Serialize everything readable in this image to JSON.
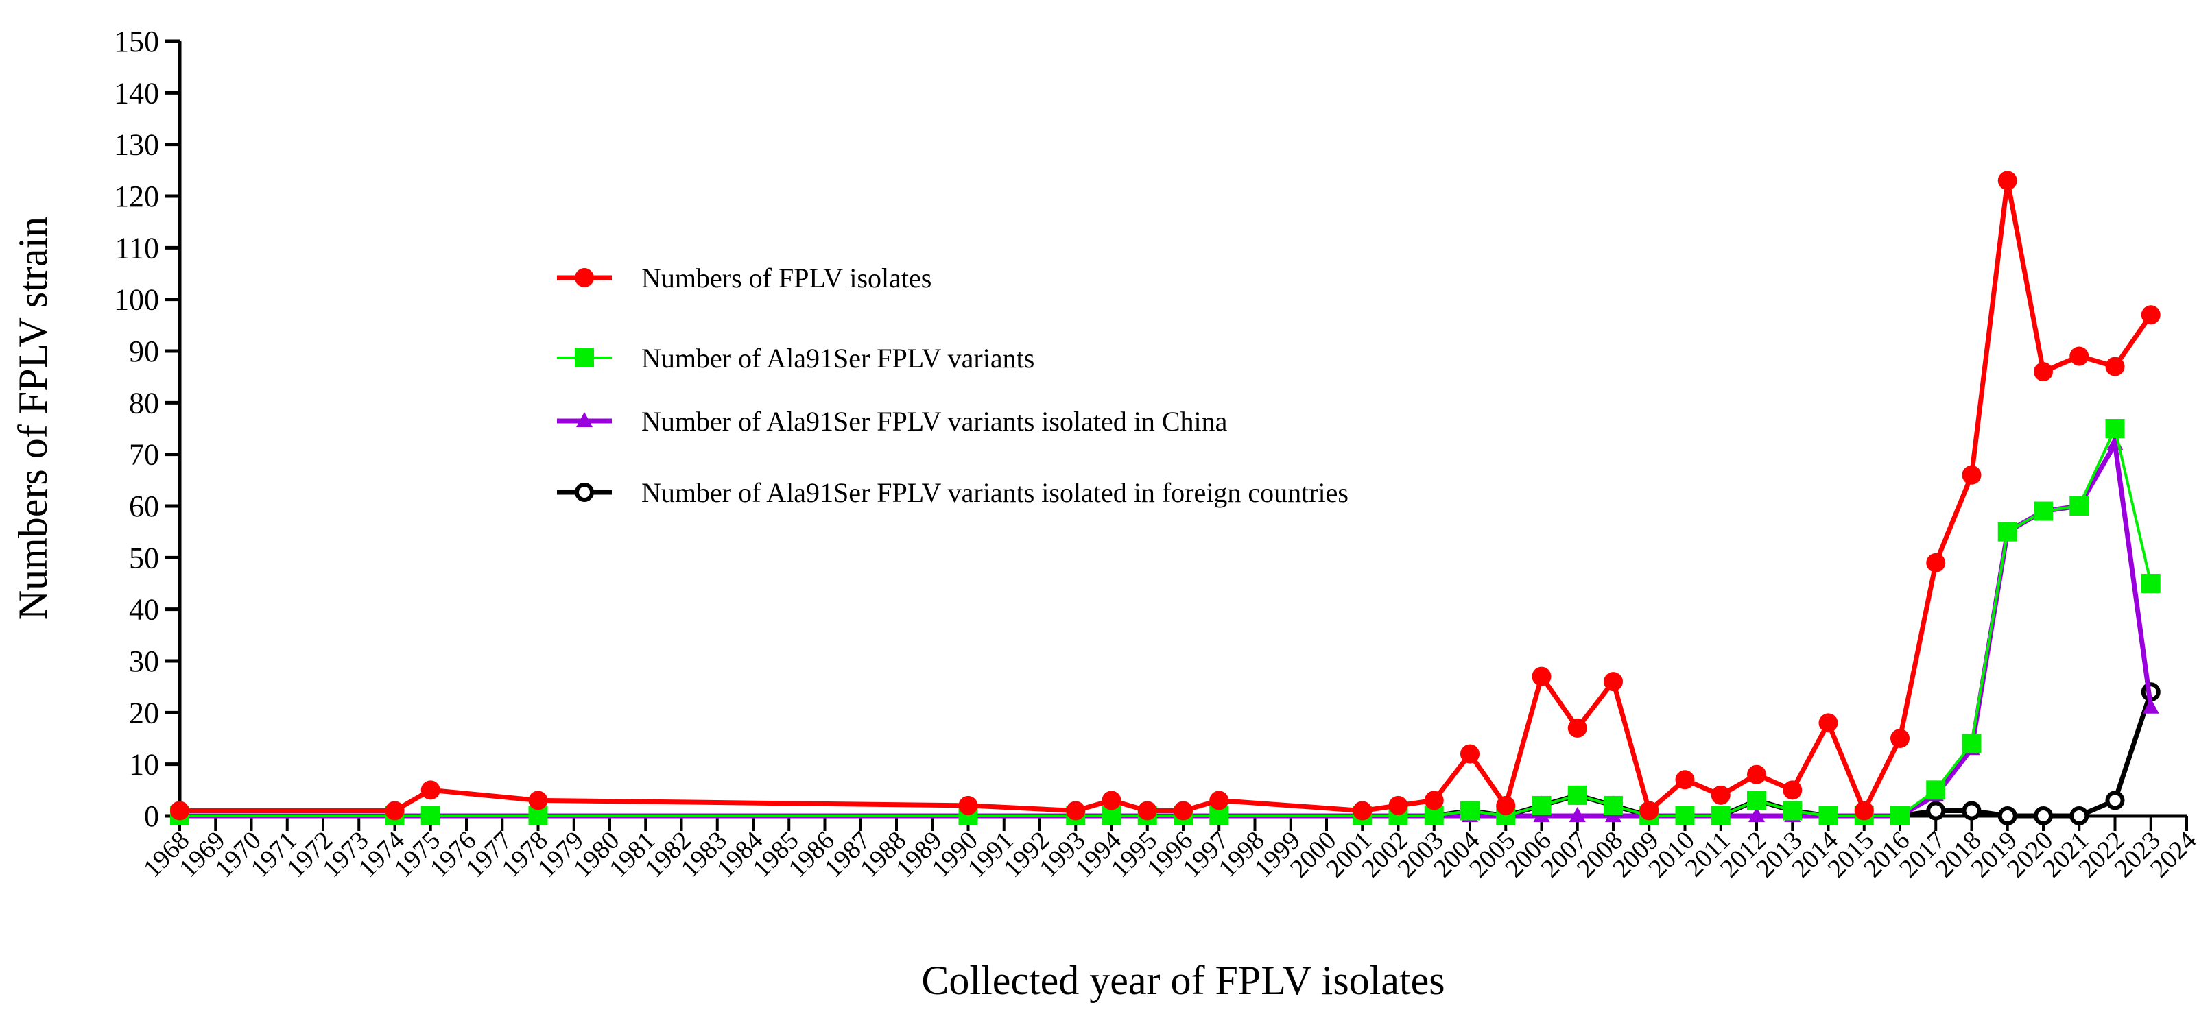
{
  "chart_data": {
    "type": "line",
    "title": "",
    "xlabel": "Collected year of FPLV isolates",
    "ylabel": "Numbers of FPLV strain",
    "ylim": [
      0,
      150
    ],
    "yticks": [
      0,
      10,
      20,
      30,
      40,
      50,
      60,
      70,
      80,
      90,
      100,
      110,
      120,
      130,
      140,
      150
    ],
    "x_categories": [
      "1968",
      "1969",
      "1970",
      "1971",
      "1972",
      "1973",
      "1974",
      "1975",
      "1976",
      "1977",
      "1978",
      "1979",
      "1980",
      "1981",
      "1982",
      "1983",
      "1984",
      "1985",
      "1986",
      "1987",
      "1988",
      "1989",
      "1990",
      "1991",
      "1992",
      "1993",
      "1994",
      "1995",
      "1996",
      "1997",
      "1998",
      "1999",
      "2000",
      "2001",
      "2002",
      "2003",
      "2004",
      "2005",
      "2006",
      "2007",
      "2008",
      "2009",
      "2010",
      "2011",
      "2012",
      "2013",
      "2014",
      "2015",
      "2016",
      "2017",
      "2018",
      "2019",
      "2020",
      "2021",
      "2022",
      "2023",
      "2024"
    ],
    "legend_position": "upper-left",
    "series": [
      {
        "name": "Numbers of FPLV isolates",
        "color": "#ff0000",
        "marker": "circle",
        "points": [
          [
            1968,
            1
          ],
          [
            1974,
            1
          ],
          [
            1975,
            5
          ],
          [
            1978,
            3
          ],
          [
            1990,
            2
          ],
          [
            1993,
            1
          ],
          [
            1994,
            3
          ],
          [
            1995,
            1
          ],
          [
            1996,
            1
          ],
          [
            1997,
            3
          ],
          [
            2001,
            1
          ],
          [
            2002,
            2
          ],
          [
            2003,
            3
          ],
          [
            2004,
            12
          ],
          [
            2005,
            2
          ],
          [
            2006,
            27
          ],
          [
            2007,
            17
          ],
          [
            2008,
            26
          ],
          [
            2009,
            1
          ],
          [
            2010,
            7
          ],
          [
            2011,
            4
          ],
          [
            2012,
            8
          ],
          [
            2013,
            5
          ],
          [
            2014,
            18
          ],
          [
            2015,
            1
          ],
          [
            2016,
            15
          ],
          [
            2017,
            49
          ],
          [
            2018,
            66
          ],
          [
            2019,
            123
          ],
          [
            2020,
            86
          ],
          [
            2021,
            89
          ],
          [
            2022,
            87
          ],
          [
            2023,
            97
          ]
        ]
      },
      {
        "name": "Number of Ala91Ser FPLV variants",
        "color": "#00ee00",
        "marker": "square",
        "points": [
          [
            1968,
            0
          ],
          [
            1974,
            0
          ],
          [
            1975,
            0
          ],
          [
            1978,
            0
          ],
          [
            1990,
            0
          ],
          [
            1993,
            0
          ],
          [
            1994,
            0
          ],
          [
            1995,
            0
          ],
          [
            1996,
            0
          ],
          [
            1997,
            0
          ],
          [
            2001,
            0
          ],
          [
            2002,
            0
          ],
          [
            2003,
            0
          ],
          [
            2004,
            1
          ],
          [
            2005,
            0
          ],
          [
            2006,
            2
          ],
          [
            2007,
            4
          ],
          [
            2008,
            2
          ],
          [
            2009,
            0
          ],
          [
            2010,
            0
          ],
          [
            2011,
            0
          ],
          [
            2012,
            3
          ],
          [
            2013,
            1
          ],
          [
            2014,
            0
          ],
          [
            2015,
            0
          ],
          [
            2016,
            0
          ],
          [
            2017,
            5
          ],
          [
            2018,
            14
          ],
          [
            2019,
            55
          ],
          [
            2020,
            59
          ],
          [
            2021,
            60
          ],
          [
            2022,
            75
          ],
          [
            2023,
            45
          ]
        ]
      },
      {
        "name": "Number of Ala91Ser FPLV variants isolated in China",
        "color": "#9900dd",
        "marker": "triangle",
        "points": [
          [
            1968,
            0
          ],
          [
            1974,
            0
          ],
          [
            1975,
            0
          ],
          [
            1978,
            0
          ],
          [
            1990,
            0
          ],
          [
            1993,
            0
          ],
          [
            1994,
            0
          ],
          [
            1995,
            0
          ],
          [
            1996,
            0
          ],
          [
            1997,
            0
          ],
          [
            2001,
            0
          ],
          [
            2002,
            0
          ],
          [
            2003,
            0
          ],
          [
            2004,
            0
          ],
          [
            2005,
            0
          ],
          [
            2006,
            0
          ],
          [
            2007,
            0
          ],
          [
            2008,
            0
          ],
          [
            2009,
            0
          ],
          [
            2010,
            0
          ],
          [
            2011,
            0
          ],
          [
            2012,
            0
          ],
          [
            2013,
            0
          ],
          [
            2014,
            0
          ],
          [
            2015,
            0
          ],
          [
            2016,
            0
          ],
          [
            2017,
            4
          ],
          [
            2018,
            13
          ],
          [
            2019,
            55
          ],
          [
            2020,
            59
          ],
          [
            2021,
            60
          ],
          [
            2022,
            72
          ],
          [
            2023,
            21
          ]
        ]
      },
      {
        "name": "Number of Ala91Ser FPLV variants isolated in foreign countries",
        "color": "#000000",
        "marker": "open-circle",
        "points": [
          [
            1968,
            0
          ],
          [
            1974,
            0
          ],
          [
            1975,
            0
          ],
          [
            1978,
            0
          ],
          [
            1990,
            0
          ],
          [
            1993,
            0
          ],
          [
            1994,
            0
          ],
          [
            1995,
            0
          ],
          [
            1996,
            0
          ],
          [
            1997,
            0
          ],
          [
            2001,
            0
          ],
          [
            2002,
            0
          ],
          [
            2003,
            0
          ],
          [
            2004,
            1
          ],
          [
            2005,
            0
          ],
          [
            2006,
            2
          ],
          [
            2007,
            4
          ],
          [
            2008,
            2
          ],
          [
            2009,
            0
          ],
          [
            2010,
            0
          ],
          [
            2011,
            0
          ],
          [
            2012,
            3
          ],
          [
            2013,
            1
          ],
          [
            2014,
            0
          ],
          [
            2015,
            0
          ],
          [
            2016,
            0
          ],
          [
            2017,
            1
          ],
          [
            2018,
            1
          ],
          [
            2019,
            0
          ],
          [
            2020,
            0
          ],
          [
            2021,
            0
          ],
          [
            2022,
            3
          ],
          [
            2023,
            24
          ]
        ]
      }
    ]
  }
}
